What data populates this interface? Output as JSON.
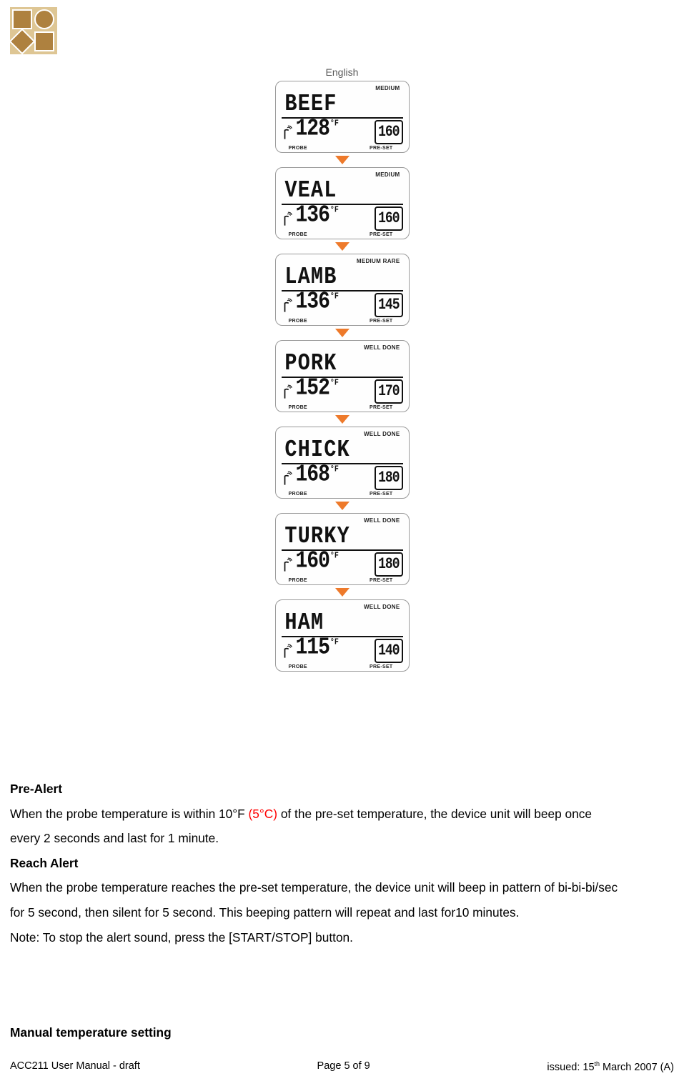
{
  "logo": {
    "bg": "#dec694",
    "shape_fill": "#ae813f",
    "border": "#ffffff"
  },
  "chart": {
    "title": "English",
    "probe_label": "PROBE",
    "preset_label": "PRE-SET",
    "unit": "°F",
    "arrow_color": "#ee7a2b",
    "items": [
      {
        "doneness": "MEDIUM",
        "name": "BEEF",
        "probe": "128",
        "preset": "160"
      },
      {
        "doneness": "MEDIUM",
        "name": "VEAL",
        "probe": "136",
        "preset": "160"
      },
      {
        "doneness": "MEDIUM RARE",
        "name": "LAMB",
        "probe": "136",
        "preset": "145"
      },
      {
        "doneness": "WELL DONE",
        "name": "PORK",
        "probe": "152",
        "preset": "170"
      },
      {
        "doneness": "WELL DONE",
        "name": "CHICK",
        "probe": "168",
        "preset": "180"
      },
      {
        "doneness": "WELL DONE",
        "name": "TURKY",
        "probe": "160",
        "preset": "180"
      },
      {
        "doneness": "WELL DONE",
        "name": "HAM",
        "probe": "115",
        "preset": "140"
      }
    ]
  },
  "text": {
    "prealert_heading": "Pre-Alert",
    "prealert_l1a": "When the probe temperature is within 10°F ",
    "prealert_l1_red": "(5°C)",
    "prealert_l1b": " of the pre-set temperature, the device unit will beep once",
    "prealert_l2": "every 2 seconds and last for 1 minute.",
    "reach_heading": "Reach Alert",
    "reach_l1": "When the probe temperature reaches the pre-set temperature, the device unit will beep in pattern of bi-bi-bi/sec",
    "reach_l2": "for 5 second, then silent for 5 second. This beeping pattern will repeat and last for10 minutes.",
    "note": "Note: To stop the alert sound, press the [START/STOP] button.",
    "manual_heading": "Manual temperature setting"
  },
  "footer": {
    "left": "ACC211 User Manual - draft",
    "center": "Page 5 of 9",
    "right_a": "issued: 15",
    "right_sup": "th",
    "right_b": " March 2007 (A)"
  }
}
